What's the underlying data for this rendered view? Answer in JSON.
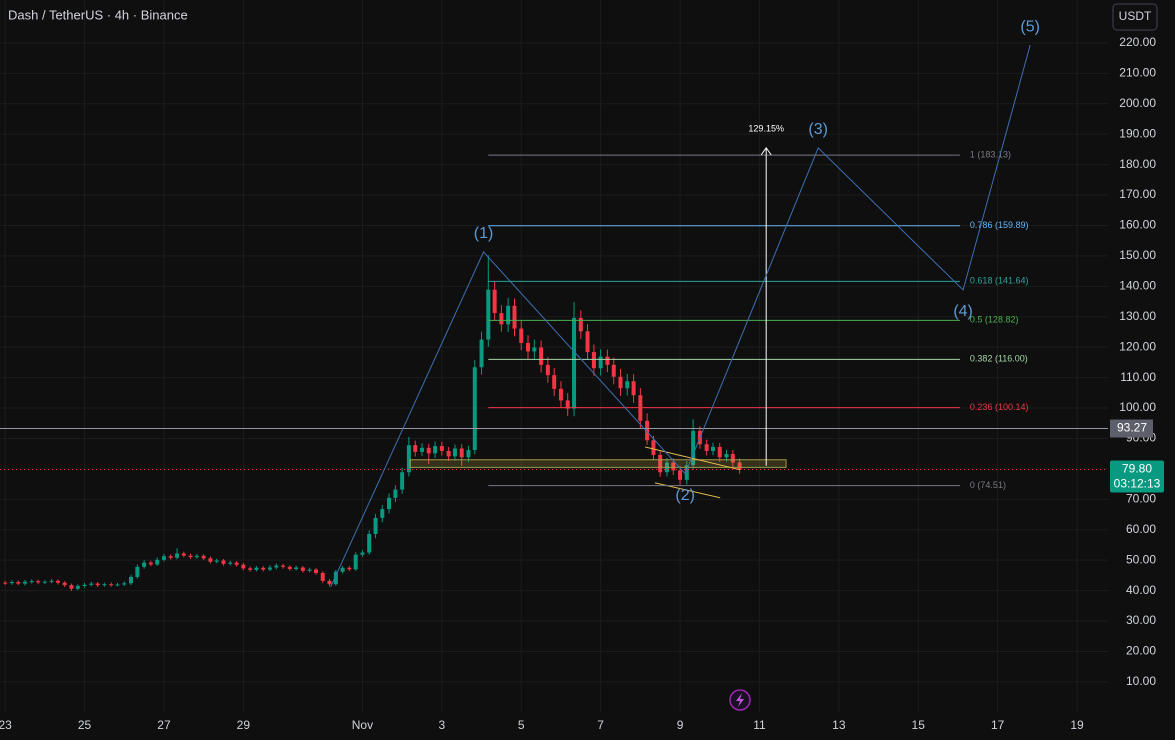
{
  "chart_data": {
    "type": "candlestick",
    "title": "Dash / TetherUS · 4h · Binance",
    "currency": "USDT",
    "xlim": [
      22.87,
      50.78
    ],
    "ylim": [
      0.1,
      234.1
    ],
    "xticks": [
      23,
      25,
      27,
      29,
      {
        "value": 32,
        "label": "Nov"
      },
      {
        "value": 34,
        "label": "3"
      },
      {
        "value": 36,
        "label": "5"
      },
      {
        "value": 38,
        "label": "7"
      },
      {
        "value": 40,
        "label": "9"
      },
      {
        "value": 42,
        "label": "11"
      },
      {
        "value": 44,
        "label": "13"
      },
      {
        "value": 46,
        "label": "15"
      },
      {
        "value": 48,
        "label": "17"
      },
      {
        "value": 50,
        "label": "19"
      }
    ],
    "yticks": [
      {
        "value": 10,
        "label": "10.00"
      },
      {
        "value": 20,
        "label": "20.00"
      },
      {
        "value": 30,
        "label": "30.00"
      },
      {
        "value": 40,
        "label": "40.00"
      },
      {
        "value": 50,
        "label": "50.00"
      },
      {
        "value": 60,
        "label": "60.00"
      },
      {
        "value": 70,
        "label": "70.00"
      },
      {
        "value": 80,
        "label": "80.00"
      },
      {
        "value": 90,
        "label": "90.00"
      },
      {
        "value": 100,
        "label": "100.00"
      },
      {
        "value": 110,
        "label": "110.00"
      },
      {
        "value": 120,
        "label": "120.00"
      },
      {
        "value": 130,
        "label": "130.00"
      },
      {
        "value": 140,
        "label": "140.00"
      },
      {
        "value": 150,
        "label": "150.00"
      },
      {
        "value": 160,
        "label": "160.00"
      },
      {
        "value": 170,
        "label": "170.00"
      },
      {
        "value": 180,
        "label": "180.00"
      },
      {
        "value": 190,
        "label": "190.00"
      },
      {
        "value": 200,
        "label": "200.00"
      },
      {
        "value": 210,
        "label": "210.00"
      },
      {
        "value": 220,
        "label": "220.00"
      }
    ],
    "grid": true,
    "up_color": "#089981",
    "down_color": "#f23645",
    "x": [
      23,
      23.17,
      23.33,
      23.5,
      23.67,
      23.83,
      24,
      24.17,
      24.33,
      24.5,
      24.67,
      24.83,
      25,
      25.17,
      25.33,
      25.5,
      25.67,
      25.83,
      26,
      26.17,
      26.33,
      26.5,
      26.67,
      26.83,
      27,
      27.17,
      27.33,
      27.5,
      27.67,
      27.83,
      28,
      28.17,
      28.33,
      28.5,
      28.67,
      28.83,
      29,
      29.17,
      29.33,
      29.5,
      29.67,
      29.83,
      30,
      30.17,
      30.33,
      30.5,
      30.67,
      30.83,
      31,
      31.17,
      31.33,
      31.5,
      31.67,
      31.83,
      32,
      32.17,
      32.33,
      32.5,
      32.67,
      32.83,
      33,
      33.17,
      33.33,
      33.5,
      33.67,
      33.83,
      34,
      34.17,
      34.33,
      34.5,
      34.67,
      34.83,
      35,
      35.17,
      35.33,
      35.5,
      35.67,
      35.83,
      36,
      36.17,
      36.33,
      36.5,
      36.67,
      36.83,
      37,
      37.17,
      37.33,
      37.5,
      37.67,
      37.83,
      38,
      38.17,
      38.33,
      38.5,
      38.67,
      38.83,
      39,
      39.17,
      39.33,
      39.5,
      39.67,
      39.83,
      40,
      40.17,
      40.33,
      40.5,
      40.67,
      40.83,
      41,
      41.17,
      41.33,
      41.5
    ],
    "open": [
      42.6,
      42.5,
      42.8,
      42.3,
      42.9,
      43.1,
      42.7,
      42.9,
      43.2,
      42.6,
      41.8,
      40.6,
      41.5,
      41.9,
      42.3,
      41.8,
      42.1,
      41.9,
      42.0,
      42.4,
      44.5,
      47.8,
      49.2,
      48.6,
      50.1,
      51.3,
      50.8,
      52.2,
      51.5,
      51.0,
      51.4,
      50.6,
      49.5,
      49.9,
      48.8,
      49.2,
      48.5,
      47.3,
      46.8,
      47.5,
      46.9,
      47.6,
      48.2,
      47.8,
      47.1,
      47.6,
      46.5,
      46.9,
      45.8,
      43.2,
      42.1,
      46.2,
      47.5,
      47.0,
      51.8,
      52.5,
      58.6,
      63.9,
      66.8,
      70.5,
      73.2,
      78.9,
      87.8,
      85.6,
      86.9,
      85.1,
      87.5,
      85.9,
      84.1,
      86.7,
      83.8,
      86.2,
      113.4,
      122.5,
      138.9,
      131.2,
      127.5,
      133.6,
      126.1,
      121.4,
      118.6,
      119.9,
      114.2,
      110.8,
      106.3,
      102.5,
      99.8,
      129.6,
      125.2,
      118.4,
      113.1,
      116.9,
      114.2,
      110.3,
      106.5,
      108.8,
      104.2,
      95.8,
      89.4,
      84.6,
      78.9,
      82.1,
      79.5,
      76.4,
      81.2,
      92.5,
      88.1,
      85.9,
      87.2,
      83.8,
      84.9,
      82.1
    ],
    "high": [
      43.2,
      43.4,
      43.3,
      43.5,
      43.7,
      43.6,
      43.4,
      43.8,
      43.7,
      43.1,
      42.3,
      42.1,
      42.5,
      42.9,
      42.8,
      42.6,
      42.7,
      42.5,
      43.0,
      45.2,
      48.6,
      50.0,
      49.8,
      50.9,
      52.1,
      51.9,
      53.9,
      52.8,
      52.1,
      52.0,
      52.0,
      51.2,
      50.5,
      50.4,
      49.8,
      49.7,
      49.1,
      47.9,
      48.1,
      48.0,
      48.3,
      48.9,
      48.8,
      48.3,
      48.2,
      48.1,
      47.5,
      47.4,
      46.3,
      43.8,
      46.8,
      48.1,
      48.0,
      52.6,
      53.3,
      59.8,
      65.2,
      68.1,
      71.9,
      74.6,
      80.4,
      90.5,
      89.3,
      88.4,
      88.2,
      89.0,
      88.9,
      87.2,
      88.0,
      88.1,
      87.6,
      115.8,
      125.1,
      150.2,
      141.6,
      133.8,
      136.2,
      136.0,
      128.6,
      123.9,
      122.5,
      122.2,
      116.7,
      113.2,
      108.8,
      104.9,
      134.8,
      132.1,
      127.6,
      120.9,
      119.3,
      119.2,
      116.6,
      112.8,
      111.2,
      111.1,
      106.6,
      98.3,
      90.9,
      86.1,
      83.6,
      83.5,
      81.0,
      82.6,
      96.3,
      94.0,
      89.6,
      88.6,
      88.5,
      86.3,
      86.2,
      83.4
    ],
    "low": [
      41.9,
      41.9,
      41.8,
      41.7,
      42.3,
      42.1,
      42.2,
      42.4,
      42.0,
      41.2,
      39.9,
      40.1,
      40.9,
      41.4,
      41.2,
      41.3,
      41.3,
      41.4,
      41.5,
      41.8,
      43.9,
      47.2,
      48.0,
      48.1,
      49.6,
      50.2,
      50.3,
      50.9,
      50.4,
      50.5,
      50.0,
      48.9,
      49.0,
      48.2,
      48.3,
      47.9,
      46.7,
      46.2,
      46.3,
      46.3,
      46.4,
      47.0,
      47.2,
      46.5,
      46.6,
      45.9,
      46.0,
      45.2,
      42.5,
      41.4,
      41.6,
      45.6,
      46.4,
      46.5,
      51.1,
      51.8,
      57.2,
      62.5,
      65.4,
      69.1,
      71.8,
      77.5,
      84.1,
      84.2,
      81.6,
      83.6,
      84.4,
      82.6,
      82.7,
      80.9,
      82.3,
      84.8,
      111.0,
      120.1,
      128.7,
      125.1,
      125.0,
      123.6,
      119.0,
      116.1,
      116.2,
      111.7,
      108.3,
      103.9,
      100.0,
      97.4,
      97.3,
      122.7,
      115.9,
      110.6,
      110.7,
      111.8,
      107.8,
      104.0,
      104.1,
      101.7,
      93.3,
      87.9,
      83.1,
      77.4,
      77.5,
      78.0,
      74.6,
      74.9,
      79.7,
      86.6,
      84.4,
      84.5,
      82.3,
      82.4,
      80.6,
      78.4
    ],
    "close": [
      42.5,
      42.8,
      42.3,
      42.9,
      43.1,
      42.7,
      42.9,
      43.2,
      42.6,
      41.8,
      40.6,
      41.5,
      41.9,
      42.3,
      41.8,
      42.1,
      41.9,
      42.0,
      42.4,
      44.5,
      47.8,
      49.2,
      48.6,
      50.1,
      51.3,
      50.8,
      52.2,
      51.5,
      51.0,
      51.4,
      50.6,
      49.5,
      49.9,
      48.8,
      49.2,
      48.5,
      47.3,
      46.8,
      47.5,
      46.9,
      47.6,
      48.2,
      47.8,
      47.1,
      47.6,
      46.5,
      46.9,
      45.8,
      43.2,
      42.1,
      46.2,
      47.5,
      47.0,
      51.8,
      52.5,
      58.6,
      63.9,
      66.8,
      70.5,
      73.2,
      78.9,
      87.8,
      85.6,
      86.9,
      85.1,
      87.5,
      85.9,
      84.1,
      86.7,
      83.8,
      86.2,
      113.4,
      122.5,
      138.9,
      131.2,
      127.5,
      133.6,
      126.1,
      121.4,
      118.6,
      119.9,
      114.2,
      110.8,
      106.3,
      102.5,
      99.8,
      129.6,
      125.2,
      118.4,
      113.1,
      116.9,
      114.2,
      110.3,
      106.5,
      108.8,
      104.2,
      95.8,
      89.4,
      84.6,
      78.9,
      82.1,
      79.5,
      76.4,
      81.2,
      92.5,
      88.1,
      85.9,
      87.2,
      83.8,
      84.9,
      82.1,
      79.8
    ],
    "last_price": {
      "value": 79.8,
      "label": "79.80"
    },
    "countdown": "03:12:13",
    "last_color": "#089981",
    "horizontal_line": {
      "value": 93.27,
      "color": "#9598a1"
    },
    "fib": {
      "x_range": [
        35.17,
        47.05
      ],
      "levels": [
        {
          "label": "1 (183.13)",
          "price": 183.13,
          "color": "#787b86"
        },
        {
          "label": "0.786 (159.89)",
          "price": 159.89,
          "color": "#64b5f6"
        },
        {
          "label": "0.618 (141.64)",
          "price": 141.64,
          "color": "#26a69a"
        },
        {
          "label": "0.5 (128.82)",
          "price": 128.82,
          "color": "#4caf50"
        },
        {
          "label": "0.382 (116.00)",
          "price": 116.0,
          "color": "#a5d6a7"
        },
        {
          "label": "0.236 (100.14)",
          "price": 100.14,
          "color": "#f23645"
        },
        {
          "label": "0 (74.51)",
          "price": 74.51,
          "color": "#787b86"
        }
      ]
    },
    "waves": {
      "color": "#3d6fb0",
      "label_color": "#5b9bd5",
      "points": [
        {
          "x": 31.2,
          "price": 41.2
        },
        {
          "x": 35.05,
          "price": 151.3,
          "label": "(1)"
        },
        {
          "x": 40.13,
          "price": 78.4,
          "label": "(2)"
        },
        {
          "x": 43.48,
          "price": 185.5,
          "label": "(3)"
        },
        {
          "x": 47.13,
          "price": 138.8,
          "label": "(4)"
        },
        {
          "x": 48.82,
          "price": 219.3,
          "label": "(5)"
        }
      ]
    },
    "measure": {
      "x": 42.17,
      "from": 81.0,
      "to": 185.5,
      "label": "129.15%"
    },
    "zone": {
      "x": [
        33.2,
        42.67
      ],
      "price": [
        80.5,
        83.0
      ]
    },
    "trendlines": [
      {
        "x": [
          39.12,
          41.51
        ],
        "price": [
          87.2,
          79.7
        ]
      },
      {
        "x": [
          39.37,
          41.01
        ],
        "price": [
          75.4,
          70.5
        ]
      }
    ]
  }
}
